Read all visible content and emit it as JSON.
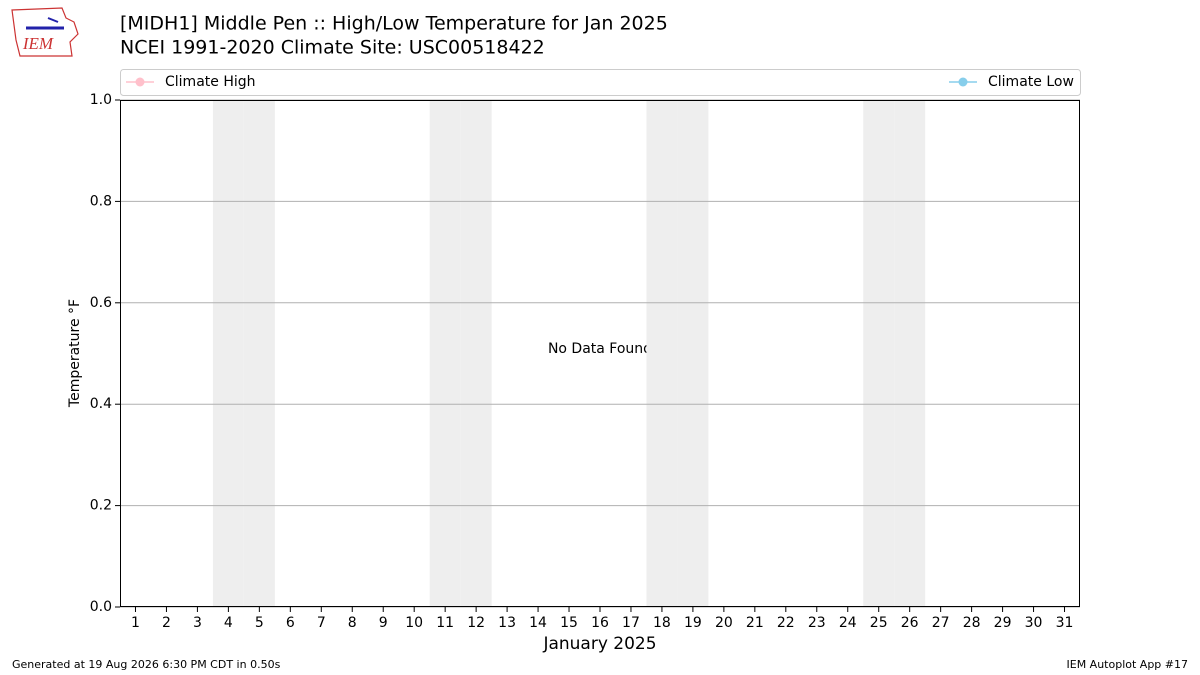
{
  "logo_text": "IEM",
  "footer_left": "Generated at 19 Aug 2026 6:30 PM CDT in 0.50s",
  "footer_right": "IEM Autoplot App #17",
  "chart_data": {
    "type": "line",
    "title": "[MIDH1] Middle Pen :: High/Low Temperature for Jan 2025",
    "subtitle": "NCEI 1991-2020 Climate Site: USC00518422",
    "ylabel": "Temperature °F",
    "xlabel": "January 2025",
    "annotation": "No Data Found",
    "x": [
      1,
      2,
      3,
      4,
      5,
      6,
      7,
      8,
      9,
      10,
      11,
      12,
      13,
      14,
      15,
      16,
      17,
      18,
      19,
      20,
      21,
      22,
      23,
      24,
      25,
      26,
      27,
      28,
      29,
      30,
      31
    ],
    "series": [
      {
        "name": "Climate High",
        "color": "#ffc0cb",
        "values": [
          null,
          null,
          null,
          null,
          null,
          null,
          null,
          null,
          null,
          null,
          null,
          null,
          null,
          null,
          null,
          null,
          null,
          null,
          null,
          null,
          null,
          null,
          null,
          null,
          null,
          null,
          null,
          null,
          null,
          null,
          null
        ]
      },
      {
        "name": "Climate Low",
        "color": "#87ceeb",
        "values": [
          null,
          null,
          null,
          null,
          null,
          null,
          null,
          null,
          null,
          null,
          null,
          null,
          null,
          null,
          null,
          null,
          null,
          null,
          null,
          null,
          null,
          null,
          null,
          null,
          null,
          null,
          null,
          null,
          null,
          null,
          null
        ]
      }
    ],
    "weekend_days": [
      4,
      5,
      11,
      12,
      18,
      19,
      25,
      26
    ],
    "weekend_color": "#eeeeee",
    "xlim": [
      0.5,
      31.5
    ],
    "xticks": [
      1,
      2,
      3,
      4,
      5,
      6,
      7,
      8,
      9,
      10,
      11,
      12,
      13,
      14,
      15,
      16,
      17,
      18,
      19,
      20,
      21,
      22,
      23,
      24,
      25,
      26,
      27,
      28,
      29,
      30,
      31
    ],
    "ylim": [
      0,
      1
    ],
    "yticks": [
      {
        "value": 0,
        "label": "0.0"
      },
      {
        "value": 0.2,
        "label": "0.2"
      },
      {
        "value": 0.4,
        "label": "0.4"
      },
      {
        "value": 0.6,
        "label": "0.6"
      },
      {
        "value": 0.8,
        "label": "0.8"
      },
      {
        "value": 1,
        "label": "1.0"
      }
    ],
    "grid": true
  }
}
